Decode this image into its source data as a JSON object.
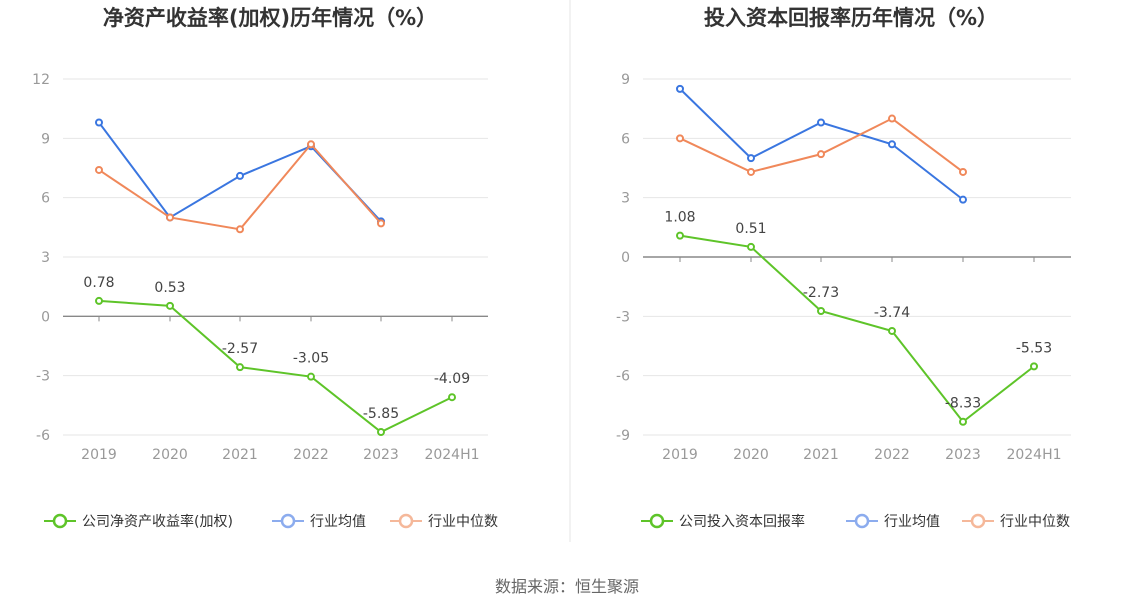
{
  "source_label": "数据来源：恒生聚源",
  "colors": {
    "company": "#5ec429",
    "industry_avg": "#3a76e0",
    "industry_median": "#f0885a",
    "legend_avg": "#8cacee",
    "legend_median": "#f5b89a"
  },
  "chart_data": [
    {
      "type": "line",
      "title": "净资产收益率(加权)历年情况（%）",
      "categories": [
        "2019",
        "2020",
        "2021",
        "2022",
        "2023",
        "2024H1"
      ],
      "y_ticks": [
        "12",
        "9",
        "6",
        "3",
        "0",
        "-3",
        "-6"
      ],
      "ylim": [
        -6,
        12
      ],
      "grid": true,
      "legend_position": "bottom",
      "series": [
        {
          "name": "公司净资产收益率(加权)",
          "key": "company",
          "values": [
            0.78,
            0.53,
            -2.57,
            -3.05,
            -5.85,
            -4.09
          ],
          "labels": [
            "0.78",
            "0.53",
            "-2.57",
            "-3.05",
            "-5.85",
            "-4.09"
          ]
        },
        {
          "name": "行业均值",
          "key": "industry_avg",
          "values": [
            9.8,
            5.0,
            7.1,
            8.6,
            4.8,
            null
          ]
        },
        {
          "name": "行业中位数",
          "key": "industry_median",
          "values": [
            7.4,
            5.0,
            4.4,
            8.7,
            4.7,
            null
          ]
        }
      ]
    },
    {
      "type": "line",
      "title": "投入资本回报率历年情况（%）",
      "categories": [
        "2019",
        "2020",
        "2021",
        "2022",
        "2023",
        "2024H1"
      ],
      "y_ticks": [
        "9",
        "6",
        "3",
        "0",
        "-3",
        "-6",
        "-9"
      ],
      "ylim": [
        -9,
        9
      ],
      "grid": true,
      "legend_position": "bottom",
      "series": [
        {
          "name": "公司投入资本回报率",
          "key": "company",
          "values": [
            1.08,
            0.51,
            -2.73,
            -3.74,
            -8.33,
            -5.53
          ],
          "labels": [
            "1.08",
            "0.51",
            "-2.73",
            "-3.74",
            "-8.33",
            "-5.53"
          ]
        },
        {
          "name": "行业均值",
          "key": "industry_avg",
          "values": [
            8.5,
            5.0,
            6.8,
            5.7,
            2.9,
            null
          ]
        },
        {
          "name": "行业中位数",
          "key": "industry_median",
          "values": [
            6.0,
            4.3,
            5.2,
            7.0,
            4.3,
            null
          ]
        }
      ]
    }
  ]
}
